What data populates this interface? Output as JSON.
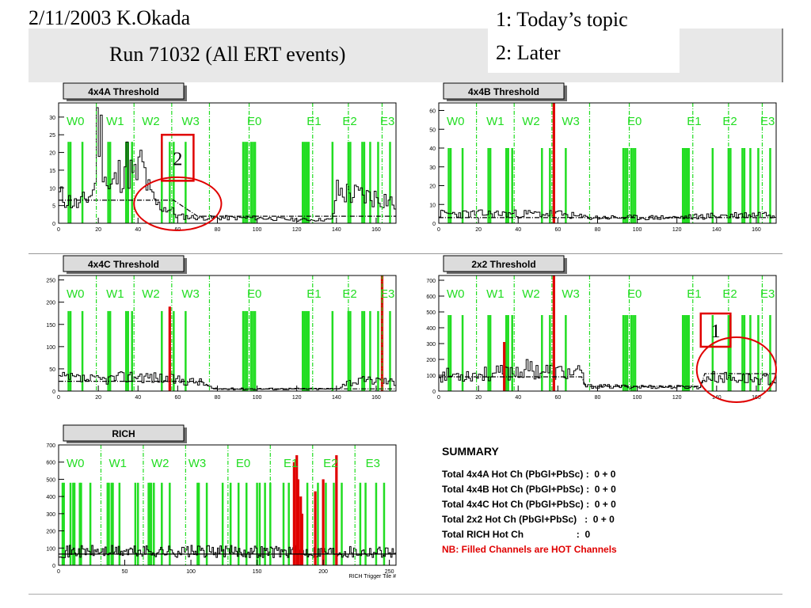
{
  "slide": {
    "date_author": "2/11/2003 K.Okada",
    "run_title": "Run 71032  (All ERT events)",
    "topics": [
      "1: Today’s topic",
      "2: Later"
    ]
  },
  "colors": {
    "hot_filled": "#22dd22",
    "hot_red": "#e00000",
    "histogram": "#000000",
    "annotation": "#e00000"
  },
  "sector_labels": [
    "W0",
    "W1",
    "W2",
    "W3",
    "E0",
    "E1",
    "E2",
    "E3"
  ],
  "chart_data": [
    {
      "type": "bar",
      "title": "4x4A Threshold",
      "xlim": [
        0,
        170
      ],
      "ylim": [
        0,
        34
      ],
      "xticks": [
        0,
        20,
        40,
        60,
        80,
        100,
        120,
        140,
        160
      ],
      "yticks": [
        0,
        5,
        10,
        15,
        20,
        25,
        30
      ],
      "sector_boundaries": [
        19,
        38,
        57,
        76,
        96,
        128,
        146,
        163
      ],
      "sector_label_x": [
        4,
        24,
        42,
        62,
        95,
        125,
        143,
        162
      ],
      "green_channels": [
        5,
        6,
        12,
        25,
        26,
        34,
        35,
        37,
        52,
        56,
        58,
        64,
        93,
        94,
        95,
        97,
        98,
        99,
        123,
        124,
        125,
        126,
        138,
        146,
        147,
        153,
        154,
        157,
        161,
        167
      ],
      "green_height": 23,
      "red_channels": [],
      "mean_line": [
        [
          0,
          6.5
        ],
        [
          58,
          6.5
        ],
        [
          70,
          2
        ],
        [
          170,
          2
        ]
      ],
      "mean_line_style": "dashdot",
      "hist_profile": [
        [
          0,
          8
        ],
        [
          10,
          5
        ],
        [
          18,
          9
        ],
        [
          20,
          31
        ],
        [
          25,
          9
        ],
        [
          30,
          13
        ],
        [
          34,
          18
        ],
        [
          38,
          12
        ],
        [
          42,
          17
        ],
        [
          46,
          8
        ],
        [
          50,
          5
        ],
        [
          56,
          4
        ],
        [
          60,
          2
        ],
        [
          72,
          1.5
        ],
        [
          100,
          1.5
        ],
        [
          120,
          1
        ],
        [
          138,
          1
        ],
        [
          140,
          9
        ],
        [
          150,
          8
        ],
        [
          165,
          7
        ],
        [
          170,
          5
        ]
      ],
      "hist_seed": 11,
      "annotations": [
        {
          "kind": "box",
          "text": "2",
          "x": [
            52,
            68
          ],
          "y": [
            12,
            25
          ]
        },
        {
          "kind": "ellipse",
          "x": [
            38,
            82
          ],
          "y": [
            -2,
            13
          ]
        }
      ]
    },
    {
      "type": "bar",
      "title": "4x4B Threshold",
      "xlim": [
        0,
        170
      ],
      "ylim": [
        0,
        64
      ],
      "xticks": [
        0,
        20,
        40,
        60,
        80,
        100,
        120,
        140,
        160
      ],
      "yticks": [
        0,
        10,
        20,
        30,
        40,
        50,
        60
      ],
      "sector_boundaries": [
        19,
        38,
        57,
        76,
        96,
        128,
        146,
        163
      ],
      "sector_label_x": [
        4,
        24,
        42,
        62,
        95,
        125,
        143,
        162
      ],
      "green_channels": [
        5,
        6,
        12,
        25,
        26,
        34,
        35,
        37,
        52,
        56,
        58,
        64,
        93,
        94,
        95,
        97,
        98,
        99,
        123,
        124,
        125,
        126,
        138,
        146,
        147,
        153,
        154,
        157,
        161,
        167
      ],
      "green_height": 40,
      "red_channels": [
        {
          "x": 58,
          "y": 64
        }
      ],
      "mean_line": [
        [
          0,
          3
        ],
        [
          170,
          3
        ]
      ],
      "mean_line_style": "dashdot",
      "hist_profile": [
        [
          0,
          5
        ],
        [
          60,
          5
        ],
        [
          75,
          3
        ],
        [
          120,
          3
        ],
        [
          140,
          4
        ],
        [
          170,
          5
        ]
      ],
      "hist_seed": 23,
      "annotations": []
    },
    {
      "type": "bar",
      "title": "4x4C Threshold",
      "xlim": [
        0,
        170
      ],
      "ylim": [
        0,
        260
      ],
      "xticks": [
        0,
        20,
        40,
        60,
        80,
        100,
        120,
        140,
        160
      ],
      "yticks": [
        0,
        50,
        100,
        150,
        200,
        250
      ],
      "sector_boundaries": [
        19,
        38,
        57,
        76,
        96,
        128,
        146,
        163
      ],
      "sector_label_x": [
        4,
        24,
        42,
        62,
        95,
        125,
        143,
        162
      ],
      "green_channels": [
        5,
        6,
        12,
        25,
        26,
        34,
        35,
        37,
        52,
        56,
        58,
        64,
        93,
        94,
        95,
        97,
        98,
        99,
        123,
        124,
        125,
        126,
        138,
        146,
        147,
        153,
        154,
        157,
        161,
        167
      ],
      "green_height": 180,
      "red_channels": [
        {
          "x": 56,
          "y": 190
        },
        {
          "x": 163,
          "y": 260
        }
      ],
      "mean_line": [
        [
          0,
          22
        ],
        [
          72,
          22
        ],
        [
          78,
          5
        ],
        [
          170,
          5
        ]
      ],
      "mean_line_style": "dashdot",
      "hist_profile": [
        [
          0,
          30
        ],
        [
          20,
          25
        ],
        [
          40,
          35
        ],
        [
          60,
          25
        ],
        [
          72,
          20
        ],
        [
          78,
          5
        ],
        [
          140,
          5
        ],
        [
          145,
          20
        ],
        [
          160,
          25
        ],
        [
          170,
          20
        ]
      ],
      "hist_seed": 37,
      "annotations": []
    },
    {
      "type": "bar",
      "title": "2x2 Threshold",
      "xlim": [
        0,
        170
      ],
      "ylim": [
        0,
        730
      ],
      "xticks": [
        0,
        20,
        40,
        60,
        80,
        100,
        120,
        140,
        160
      ],
      "yticks": [
        0,
        100,
        200,
        300,
        400,
        500,
        600,
        700
      ],
      "sector_boundaries": [
        19,
        38,
        57,
        76,
        96,
        128,
        146,
        163
      ],
      "sector_label_x": [
        4,
        24,
        42,
        62,
        95,
        125,
        143,
        162
      ],
      "green_channels": [
        5,
        6,
        12,
        25,
        26,
        34,
        35,
        37,
        52,
        56,
        58,
        64,
        93,
        94,
        95,
        97,
        98,
        99,
        123,
        124,
        125,
        126,
        138,
        146,
        147,
        153,
        154,
        157,
        161,
        167
      ],
      "green_height": 480,
      "red_channels": [
        {
          "x": 33,
          "y": 310
        },
        {
          "x": 58,
          "y": 730
        }
      ],
      "mean_line": [
        [
          0,
          90
        ],
        [
          72,
          90
        ],
        [
          74,
          30
        ],
        [
          132,
          30
        ],
        [
          134,
          110
        ],
        [
          170,
          110
        ]
      ],
      "mean_line_style": "dashdot",
      "hist_profile": [
        [
          0,
          100
        ],
        [
          30,
          110
        ],
        [
          45,
          140
        ],
        [
          60,
          120
        ],
        [
          72,
          110
        ],
        [
          74,
          30
        ],
        [
          132,
          25
        ],
        [
          134,
          90
        ],
        [
          150,
          80
        ],
        [
          170,
          70
        ]
      ],
      "hist_seed": 53,
      "annotations": [
        {
          "kind": "box",
          "text": "1",
          "x": [
            132,
            147
          ],
          "y": [
            280,
            490
          ]
        },
        {
          "kind": "ellipse",
          "x": [
            130,
            170
          ],
          "y": [
            -70,
            340
          ]
        }
      ]
    },
    {
      "type": "bar",
      "title": "RICH",
      "xlim": [
        0,
        255
      ],
      "ylim": [
        0,
        700
      ],
      "xticks": [
        0,
        50,
        100,
        150,
        200,
        250
      ],
      "xtick_labels": [
        "0",
        "50",
        "100",
        "150",
        "200",
        "250"
      ],
      "yticks": [
        0,
        100,
        200,
        300,
        400,
        500,
        600,
        700
      ],
      "xlabel": "RICH Trigger Tile #",
      "sector_boundaries": [
        32,
        64,
        96,
        128,
        160,
        192,
        224
      ],
      "sector_label_x": [
        6,
        38,
        70,
        98,
        134,
        170,
        200,
        232
      ],
      "green_channels": [
        3,
        4,
        9,
        11,
        12,
        16,
        17,
        24,
        37,
        38,
        40,
        41,
        46,
        58,
        60,
        68,
        69,
        70,
        72,
        78,
        84,
        105,
        106,
        112,
        124,
        130,
        136,
        142,
        150,
        152,
        156,
        160,
        170,
        174,
        178,
        188,
        196,
        202,
        208,
        214,
        228,
        232,
        240,
        246
      ],
      "green_height": 480,
      "red_channels": [
        {
          "x": 178,
          "y": 600
        },
        {
          "x": 180,
          "y": 640
        },
        {
          "x": 181,
          "y": 500
        },
        {
          "x": 183,
          "y": 400
        },
        {
          "x": 184,
          "y": 300
        },
        {
          "x": 194,
          "y": 430
        },
        {
          "x": 200,
          "y": 500
        },
        {
          "x": 210,
          "y": 640
        }
      ],
      "mean_line": [
        [
          0,
          65
        ],
        [
          255,
          65
        ]
      ],
      "mean_line_style": "solid",
      "hist_profile": [
        [
          0,
          80
        ],
        [
          255,
          80
        ]
      ],
      "hist_seed": 71,
      "annotations": []
    }
  ],
  "summary": {
    "title": "SUMMARY",
    "lines": [
      "Total 4x4A Hot Ch (PbGl+PbSc) :  0 + 0",
      "Total 4x4B Hot Ch (PbGl+PbSc) :  0 + 0",
      "Total 4x4C Hot Ch (PbGl+PbSc) :  0 + 0",
      "Total 2x2 Hot Ch (PbGl+PbSc)   :  0 + 0",
      "Total RICH Hot Ch                    :  0"
    ],
    "note": "NB: Filled Channels are HOT Channels"
  }
}
